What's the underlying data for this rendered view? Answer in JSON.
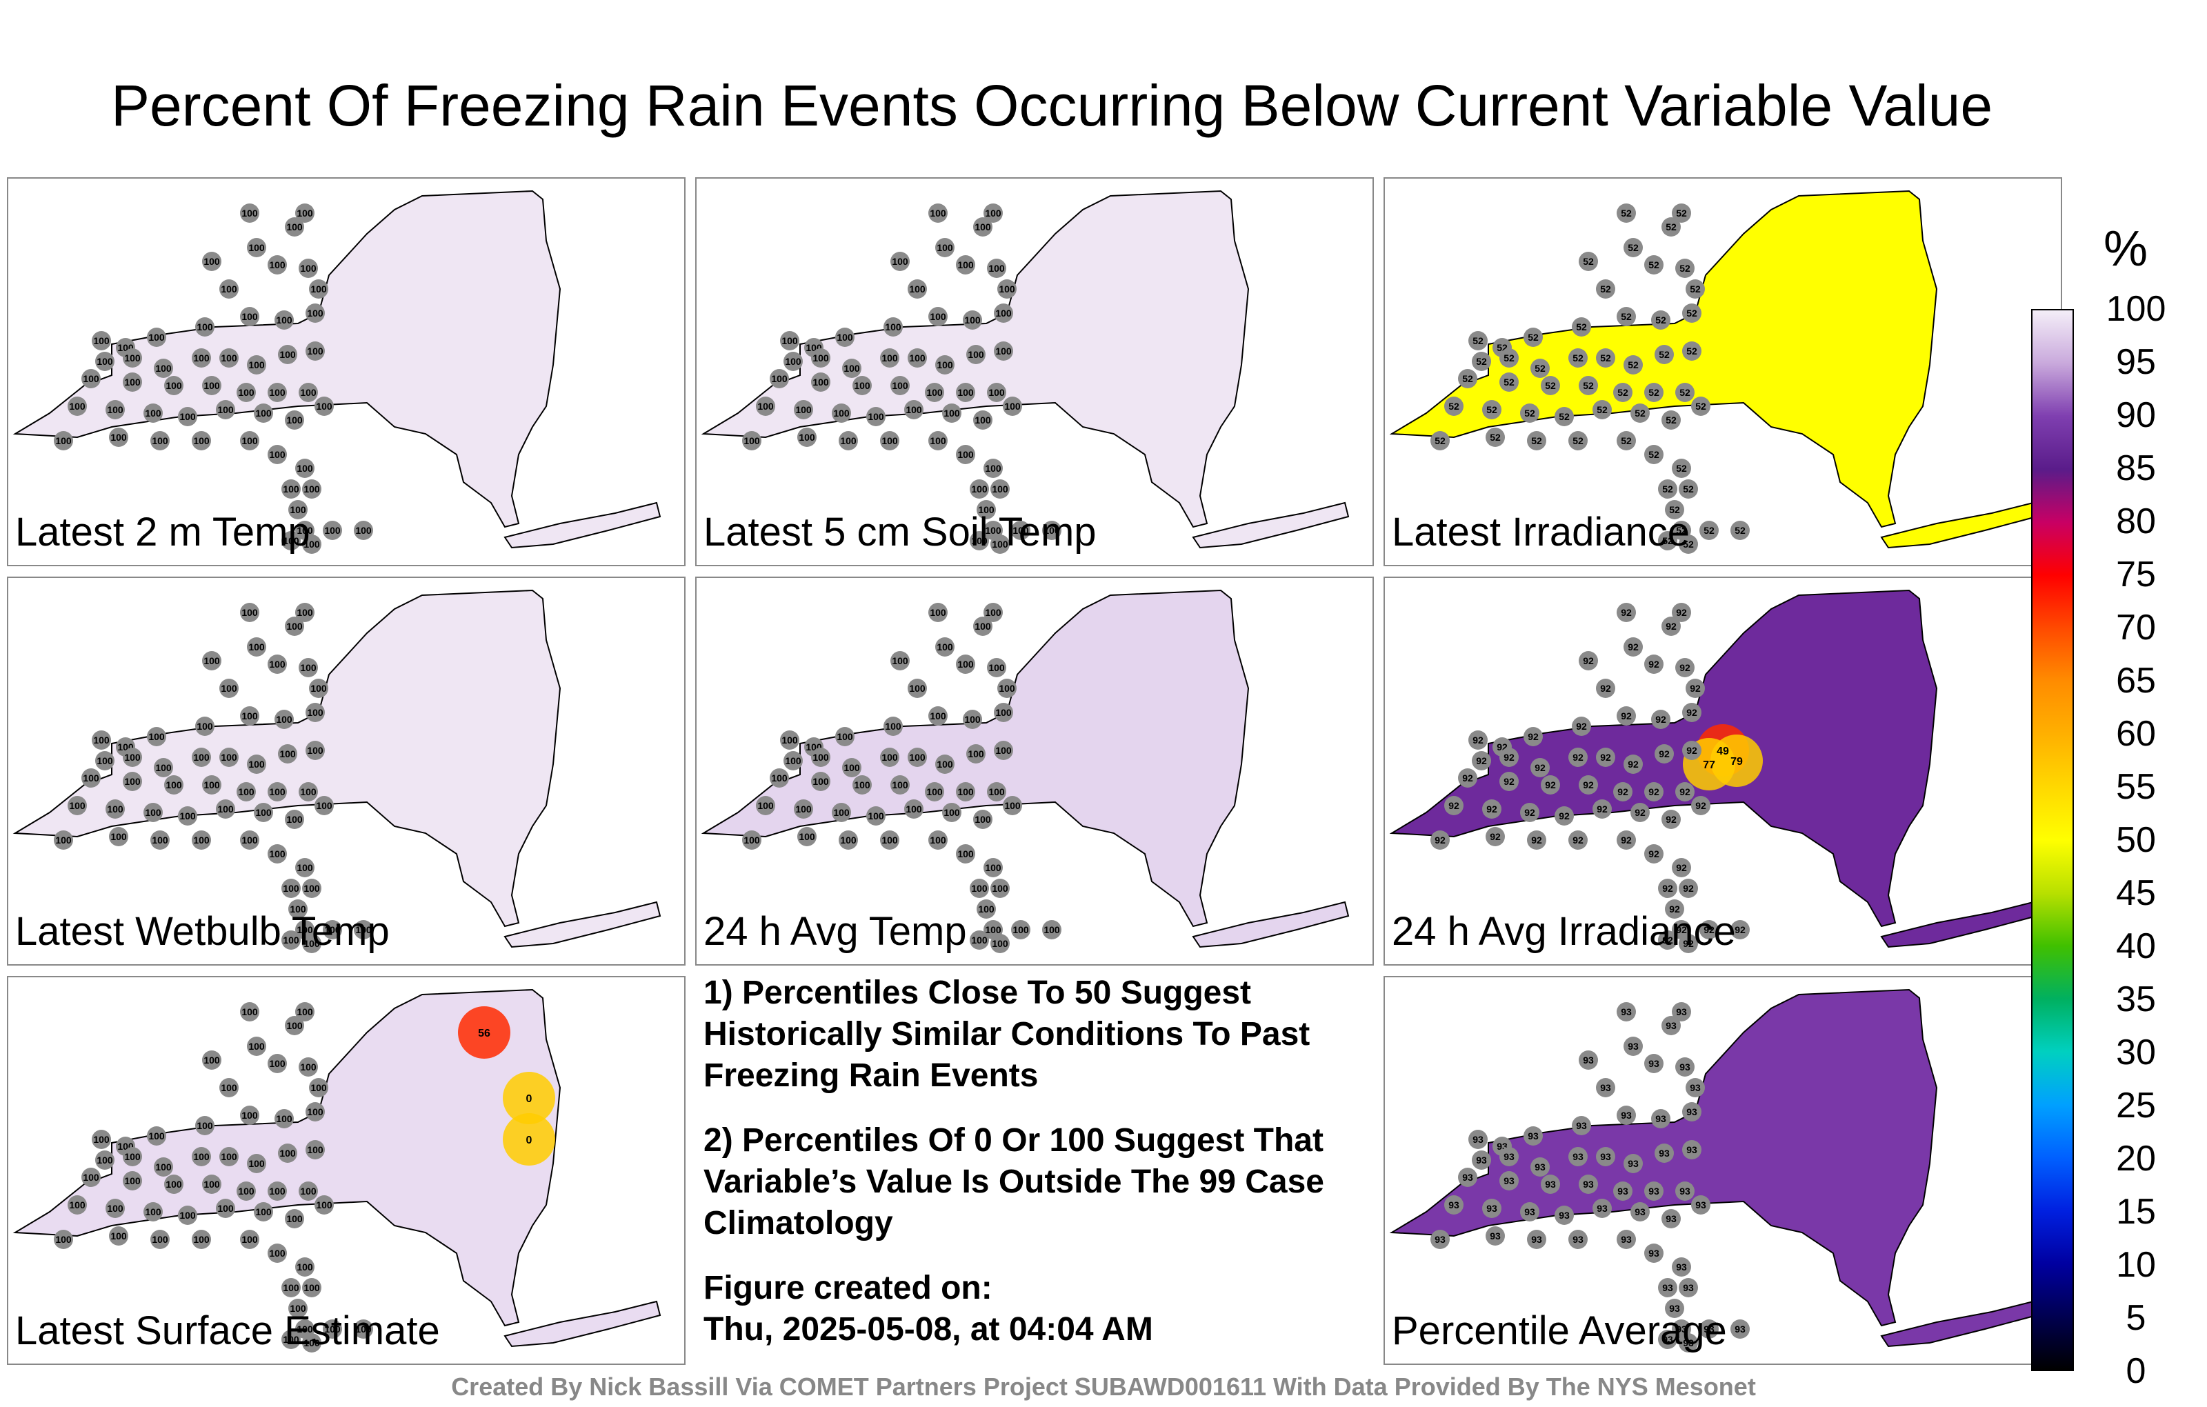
{
  "title": "Percent Of Freezing Rain Events Occurring Below Current Variable Value",
  "panels": [
    {
      "label": "Latest 2 m Temp",
      "fill": "#efe6f3",
      "value": "100",
      "hot": []
    },
    {
      "label": "Latest 5 cm Soil Temp",
      "fill": "#efe6f3",
      "value": "100",
      "hot": []
    },
    {
      "label": "Latest Irradiance",
      "fill": "#ffff00",
      "value": "52",
      "hot": []
    },
    {
      "label": "Latest Wetbulb Temp",
      "fill": "#efe6f3",
      "value": "100",
      "hot": []
    },
    {
      "label": "24 h Avg Temp",
      "fill": "#e4d5ee",
      "value": "100",
      "hot": []
    },
    {
      "label": "24 h Avg Irradiance",
      "fill": "#6e2a9c",
      "value": "92",
      "hot": [
        "49",
        "77",
        "79"
      ]
    },
    {
      "label": "Latest Surface Estimate",
      "fill": "#e9dcf1",
      "value": "100",
      "hot": [
        "56",
        "0",
        "0"
      ]
    },
    {
      "label": "Percentile Average",
      "fill": "#7a38a8",
      "value": "93",
      "hot": []
    }
  ],
  "notes": {
    "note1": "1) Percentiles Close To 50 Suggest Historically Similar Conditions To Past Freezing Rain Events",
    "note2": "2) Percentiles Of 0 Or 100 Suggest That Variable’s Value Is Outside The 99 Case Climatology",
    "created_label": "Figure created on:",
    "created_date": "Thu, 2025-05-08, at 04:04 AM"
  },
  "colorbar": {
    "unit": "%",
    "ticks": [
      "100",
      "95",
      "90",
      "85",
      "80",
      "75",
      "70",
      "65",
      "60",
      "55",
      "50",
      "45",
      "40",
      "35",
      "30",
      "25",
      "20",
      "15",
      "10",
      "5",
      "0"
    ],
    "colors": [
      "#f4eef8",
      "#c9a9dc",
      "#7f3fb0",
      "#5a1c8a",
      "#c80064",
      "#ff0000",
      "#ff4a00",
      "#ff8c00",
      "#ffb000",
      "#ffd800",
      "#ffff00",
      "#b8e000",
      "#40c000",
      "#00b060",
      "#00d0c0",
      "#00a0ff",
      "#0060ff",
      "#0020e0",
      "#0000a0",
      "#000050",
      "#000000"
    ]
  },
  "credit": "Created By Nick Bassill Via COMET Partners Project SUBAWD001611 With Data Provided By The NYS Mesonet"
}
